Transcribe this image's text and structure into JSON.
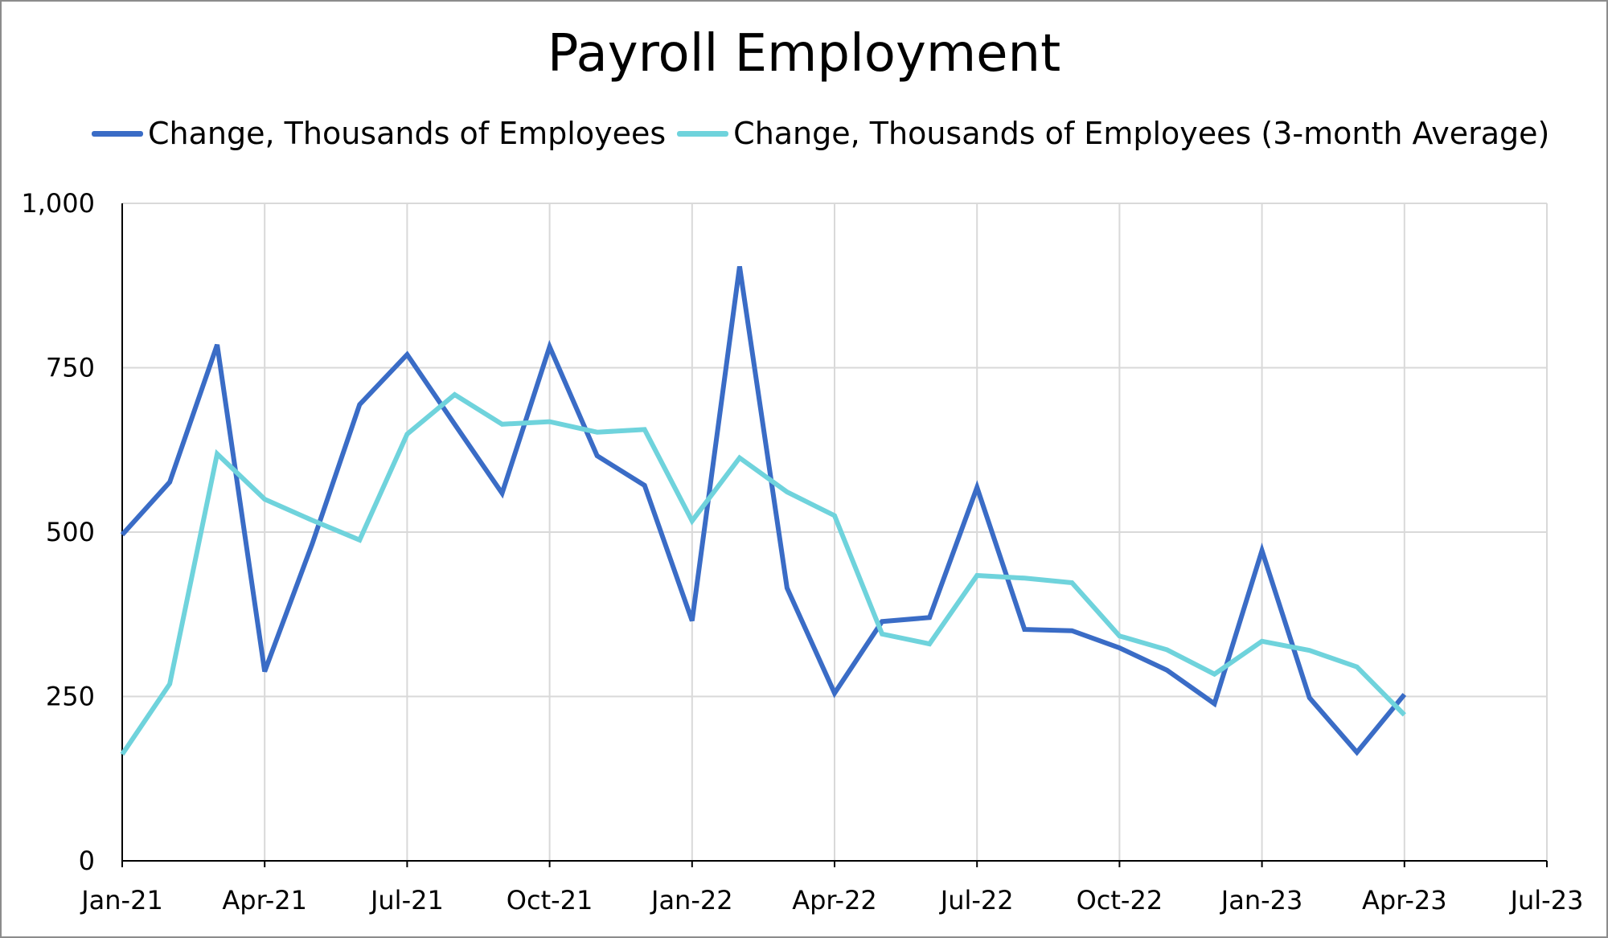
{
  "chart_data": {
    "type": "line",
    "title": "Payroll Employment",
    "xlabel": "",
    "ylabel": "",
    "ylim": [
      0,
      1000
    ],
    "y_ticks": [
      0,
      250,
      500,
      750,
      1000
    ],
    "y_tick_labels": [
      "0",
      "250",
      "500",
      "750",
      "1,000"
    ],
    "x_tick_labels": [
      "Jan-21",
      "Apr-21",
      "Jul-21",
      "Oct-21",
      "Jan-22",
      "Apr-22",
      "Jul-22",
      "Oct-22",
      "Jan-23",
      "Apr-23",
      "Jul-23"
    ],
    "x_range": [
      "Jan-21",
      "Jul-23"
    ],
    "grid": true,
    "legend_position": "top",
    "x": [
      "Jan-21",
      "Feb-21",
      "Mar-21",
      "Apr-21",
      "May-21",
      "Jun-21",
      "Jul-21",
      "Aug-21",
      "Sep-21",
      "Oct-21",
      "Nov-21",
      "Dec-21",
      "Jan-22",
      "Feb-22",
      "Mar-22",
      "Apr-22",
      "May-22",
      "Jun-22",
      "Jul-22",
      "Aug-22",
      "Sep-22",
      "Oct-22",
      "Nov-22",
      "Dec-22",
      "Jan-23",
      "Feb-23",
      "Mar-23",
      "Apr-23"
    ],
    "series": [
      {
        "name": "Change, Thousands of Employees",
        "color": "#3a6cc6",
        "values": [
          496,
          576,
          785,
          288,
          482,
          694,
          770,
          664,
          559,
          782,
          616,
          571,
          365,
          904,
          415,
          255,
          364,
          370,
          568,
          352,
          350,
          324,
          290,
          239,
          472,
          248,
          165,
          253
        ]
      },
      {
        "name": "Change, Thousands of Employees (3-month Average)",
        "color": "#6fd3dc",
        "values": [
          162,
          269,
          619,
          550,
          518,
          488,
          649,
          709,
          664,
          668,
          652,
          656,
          517,
          613,
          561,
          525,
          345,
          330,
          434,
          430,
          423,
          342,
          321,
          284,
          334,
          320,
          295,
          222
        ]
      }
    ]
  }
}
